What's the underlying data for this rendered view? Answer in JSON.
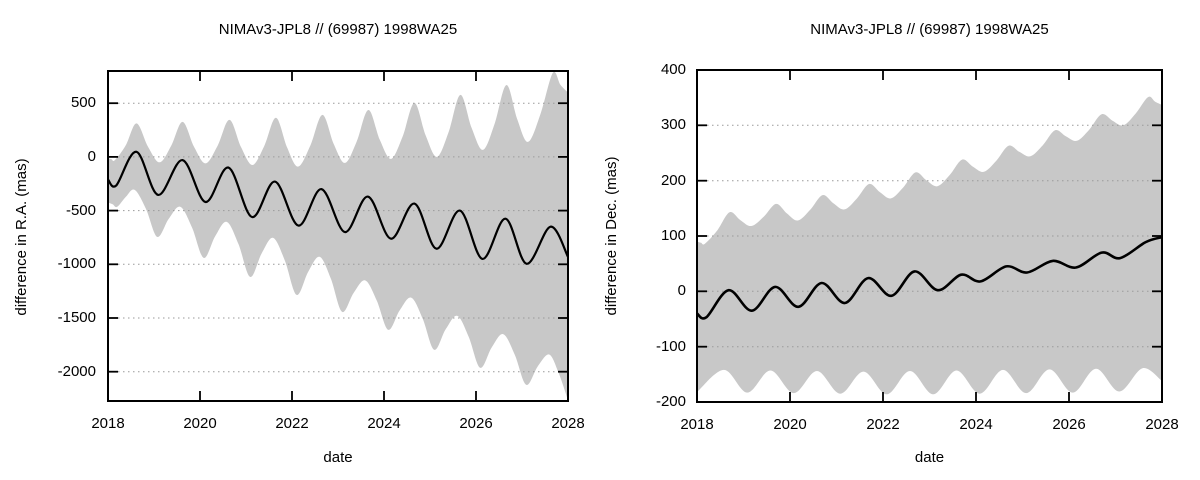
{
  "figure": {
    "background": "#ffffff",
    "text_color": "#000000",
    "band_color": "#c8c8c8",
    "grid_color": "#9a9a9a",
    "axis_color": "#000000",
    "line_color": "#000000"
  },
  "chart_data": [
    {
      "id": "ra",
      "type": "line",
      "title": "NIMAv3-JPL8 // (69987) 1998WA25",
      "xlabel": "date",
      "ylabel": "difference in R.A. (mas)",
      "xlim": [
        2018,
        2028
      ],
      "ylim": [
        -2273,
        800
      ],
      "xticks": [
        2018,
        2020,
        2022,
        2024,
        2026,
        2028
      ],
      "yticks": [
        500,
        0,
        -500,
        -1000,
        -1500,
        -2000
      ],
      "grid": "horizontal-dotted",
      "legend": "none",
      "series": [
        {
          "role": "band-upper",
          "shape_bias": 0.4,
          "points": [
            [
              2018.0,
              -10
            ],
            [
              2018.15,
              -30
            ],
            [
              2018.62,
              312
            ],
            [
              2019.12,
              -50
            ],
            [
              2019.62,
              326
            ],
            [
              2020.12,
              -60
            ],
            [
              2020.64,
              345
            ],
            [
              2021.14,
              -75
            ],
            [
              2021.65,
              365
            ],
            [
              2022.13,
              -90
            ],
            [
              2022.66,
              391
            ],
            [
              2023.15,
              -56
            ],
            [
              2023.66,
              437
            ],
            [
              2024.15,
              -19
            ],
            [
              2024.66,
              502
            ],
            [
              2025.15,
              0
            ],
            [
              2025.66,
              577
            ],
            [
              2026.15,
              65
            ],
            [
              2026.66,
              670
            ],
            [
              2027.13,
              140
            ],
            [
              2027.67,
              782
            ],
            [
              2028.0,
              600
            ]
          ]
        },
        {
          "role": "band-lower",
          "shape_bias": 0.6,
          "points": [
            [
              2018.0,
              -425
            ],
            [
              2018.2,
              -465
            ],
            [
              2018.58,
              -307
            ],
            [
              2019.07,
              -745
            ],
            [
              2019.57,
              -465
            ],
            [
              2020.08,
              -940
            ],
            [
              2020.58,
              -605
            ],
            [
              2021.09,
              -1117
            ],
            [
              2021.59,
              -754
            ],
            [
              2022.1,
              -1285
            ],
            [
              2022.6,
              -930
            ],
            [
              2023.09,
              -1443
            ],
            [
              2023.59,
              -1150
            ],
            [
              2024.09,
              -1610
            ],
            [
              2024.59,
              -1310
            ],
            [
              2025.09,
              -1796
            ],
            [
              2025.59,
              -1480
            ],
            [
              2026.09,
              -1964
            ],
            [
              2026.59,
              -1650
            ],
            [
              2027.09,
              -2122
            ],
            [
              2027.59,
              -1840
            ],
            [
              2028.0,
              -2265
            ]
          ]
        },
        {
          "role": "line",
          "shape_bias": null,
          "points": [
            [
              2018.0,
              -210
            ],
            [
              2018.18,
              -265
            ],
            [
              2018.62,
              48
            ],
            [
              2019.09,
              -354
            ],
            [
              2019.62,
              -30
            ],
            [
              2020.12,
              -420
            ],
            [
              2020.62,
              -100
            ],
            [
              2021.13,
              -560
            ],
            [
              2021.63,
              -230
            ],
            [
              2022.14,
              -640
            ],
            [
              2022.64,
              -300
            ],
            [
              2023.15,
              -700
            ],
            [
              2023.65,
              -370
            ],
            [
              2024.15,
              -762
            ],
            [
              2024.66,
              -435
            ],
            [
              2025.14,
              -855
            ],
            [
              2025.65,
              -500
            ],
            [
              2026.14,
              -950
            ],
            [
              2026.64,
              -575
            ],
            [
              2027.1,
              -995
            ],
            [
              2027.62,
              -650
            ],
            [
              2028.0,
              -930
            ]
          ]
        }
      ]
    },
    {
      "id": "dec",
      "type": "line",
      "title": "NIMAv3-JPL8 // (69987) 1998WA25",
      "xlabel": "date",
      "ylabel": "difference in Dec. (mas)",
      "xlim": [
        2018,
        2028
      ],
      "ylim": [
        -200,
        400
      ],
      "xticks": [
        2018,
        2020,
        2022,
        2024,
        2026,
        2028
      ],
      "yticks": [
        400,
        300,
        200,
        100,
        0,
        -100,
        -200
      ],
      "grid": "horizontal-dotted",
      "legend": "none",
      "series": [
        {
          "role": "band-upper",
          "shape_bias": 0.42,
          "points": [
            [
              2018.0,
              90
            ],
            [
              2018.17,
              86
            ],
            [
              2018.7,
              143
            ],
            [
              2019.17,
              118
            ],
            [
              2019.7,
              158
            ],
            [
              2020.17,
              128
            ],
            [
              2020.7,
              174
            ],
            [
              2021.17,
              148
            ],
            [
              2021.7,
              194
            ],
            [
              2022.17,
              168
            ],
            [
              2022.7,
              215
            ],
            [
              2023.17,
              190
            ],
            [
              2023.7,
              238
            ],
            [
              2024.17,
              216
            ],
            [
              2024.7,
              263
            ],
            [
              2025.17,
              244
            ],
            [
              2025.7,
              291
            ],
            [
              2026.17,
              272
            ],
            [
              2026.7,
              320
            ],
            [
              2027.17,
              300
            ],
            [
              2027.7,
              351
            ],
            [
              2028.0,
              337
            ]
          ]
        },
        {
          "role": "band-lower",
          "shape_bias": null,
          "points": [
            [
              2018.0,
              -182
            ],
            [
              2018.58,
              -142
            ],
            [
              2019.08,
              -183
            ],
            [
              2019.58,
              -143
            ],
            [
              2020.08,
              -184
            ],
            [
              2020.58,
              -144
            ],
            [
              2021.08,
              -185
            ],
            [
              2021.58,
              -145
            ],
            [
              2022.08,
              -186
            ],
            [
              2022.58,
              -144
            ],
            [
              2023.08,
              -186
            ],
            [
              2023.58,
              -143
            ],
            [
              2024.08,
              -185
            ],
            [
              2024.58,
              -142
            ],
            [
              2025.08,
              -184
            ],
            [
              2025.58,
              -141
            ],
            [
              2026.08,
              -183
            ],
            [
              2026.58,
              -140
            ],
            [
              2027.08,
              -181
            ],
            [
              2027.58,
              -139
            ],
            [
              2028.0,
              -162
            ]
          ]
        },
        {
          "role": "line",
          "shape_bias": null,
          "points": [
            [
              2018.0,
              -40
            ],
            [
              2018.2,
              -47
            ],
            [
              2018.68,
              2
            ],
            [
              2019.18,
              -35
            ],
            [
              2019.68,
              8
            ],
            [
              2020.18,
              -28
            ],
            [
              2020.68,
              15
            ],
            [
              2021.18,
              -21
            ],
            [
              2021.68,
              24
            ],
            [
              2022.18,
              -8
            ],
            [
              2022.68,
              36
            ],
            [
              2023.18,
              2
            ],
            [
              2023.68,
              30
            ],
            [
              2024.1,
              18
            ],
            [
              2024.65,
              45
            ],
            [
              2025.1,
              34
            ],
            [
              2025.65,
              55
            ],
            [
              2026.15,
              43
            ],
            [
              2026.7,
              70
            ],
            [
              2027.1,
              60
            ],
            [
              2027.65,
              89
            ],
            [
              2028.0,
              98
            ]
          ]
        }
      ]
    }
  ]
}
